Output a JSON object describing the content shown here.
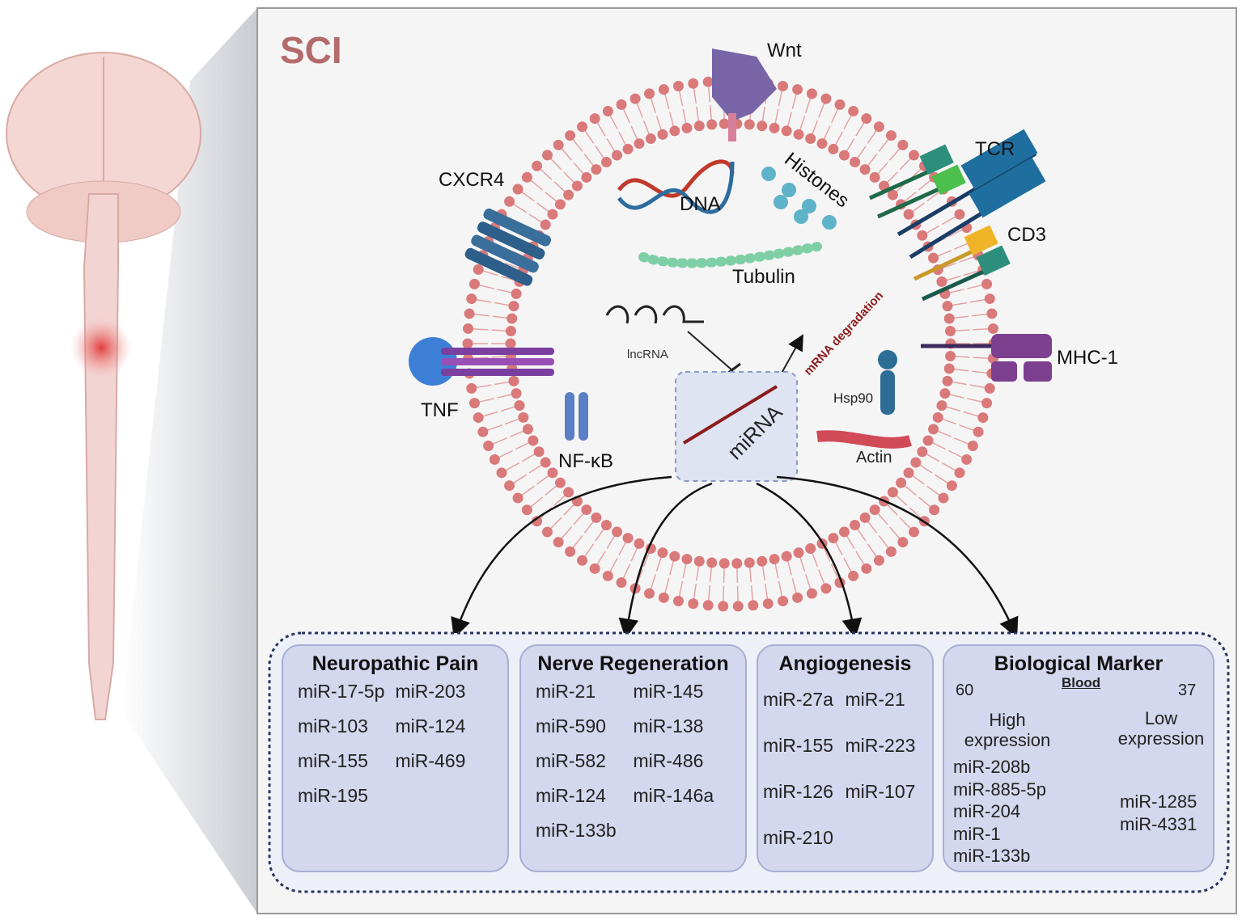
{
  "title": "SCI",
  "membrane": {
    "wnt": "Wnt",
    "tcr": "TCR",
    "cd3": "CD3",
    "mhc": "MHC-1",
    "cxcr4": "CXCR4",
    "tnf": "TNF"
  },
  "cell": {
    "dna": "DNA",
    "histones": "Histones",
    "tubulin": "Tubulin",
    "lncrna": "lncRNA",
    "degradation": "mRNA degradation",
    "mirna": "miRNA",
    "hsp90": "Hsp90",
    "actin": "Actin",
    "nfkb": "NF-κB"
  },
  "panels": [
    {
      "title": "Neuropathic Pain",
      "items": [
        "miR-17-5p",
        "miR-203",
        "miR-103",
        "miR-124",
        "miR-155",
        "miR-469",
        "miR-195"
      ]
    },
    {
      "title": "Nerve Regeneration",
      "items": [
        "miR-21",
        "miR-145",
        "miR-590",
        "miR-138",
        "miR-582",
        "miR-486",
        "miR-124",
        "miR-146a",
        "miR-133b"
      ]
    },
    {
      "title": "Angiogenesis",
      "items": [
        "miR-27a",
        "miR-21",
        "miR-155",
        "miR-223",
        "miR-126",
        "miR-107",
        "miR-210"
      ]
    }
  ],
  "marker": {
    "title": "Biological Marker",
    "blood": "Blood",
    "high": {
      "count": "60",
      "label": "High expression",
      "items": [
        "miR-208b",
        "miR-885-5p",
        "miR-204",
        "miR-1",
        "miR-133b"
      ]
    },
    "low": {
      "count": "37",
      "label": "Low expression",
      "items": [
        "miR-1285",
        "miR-4331"
      ]
    }
  }
}
